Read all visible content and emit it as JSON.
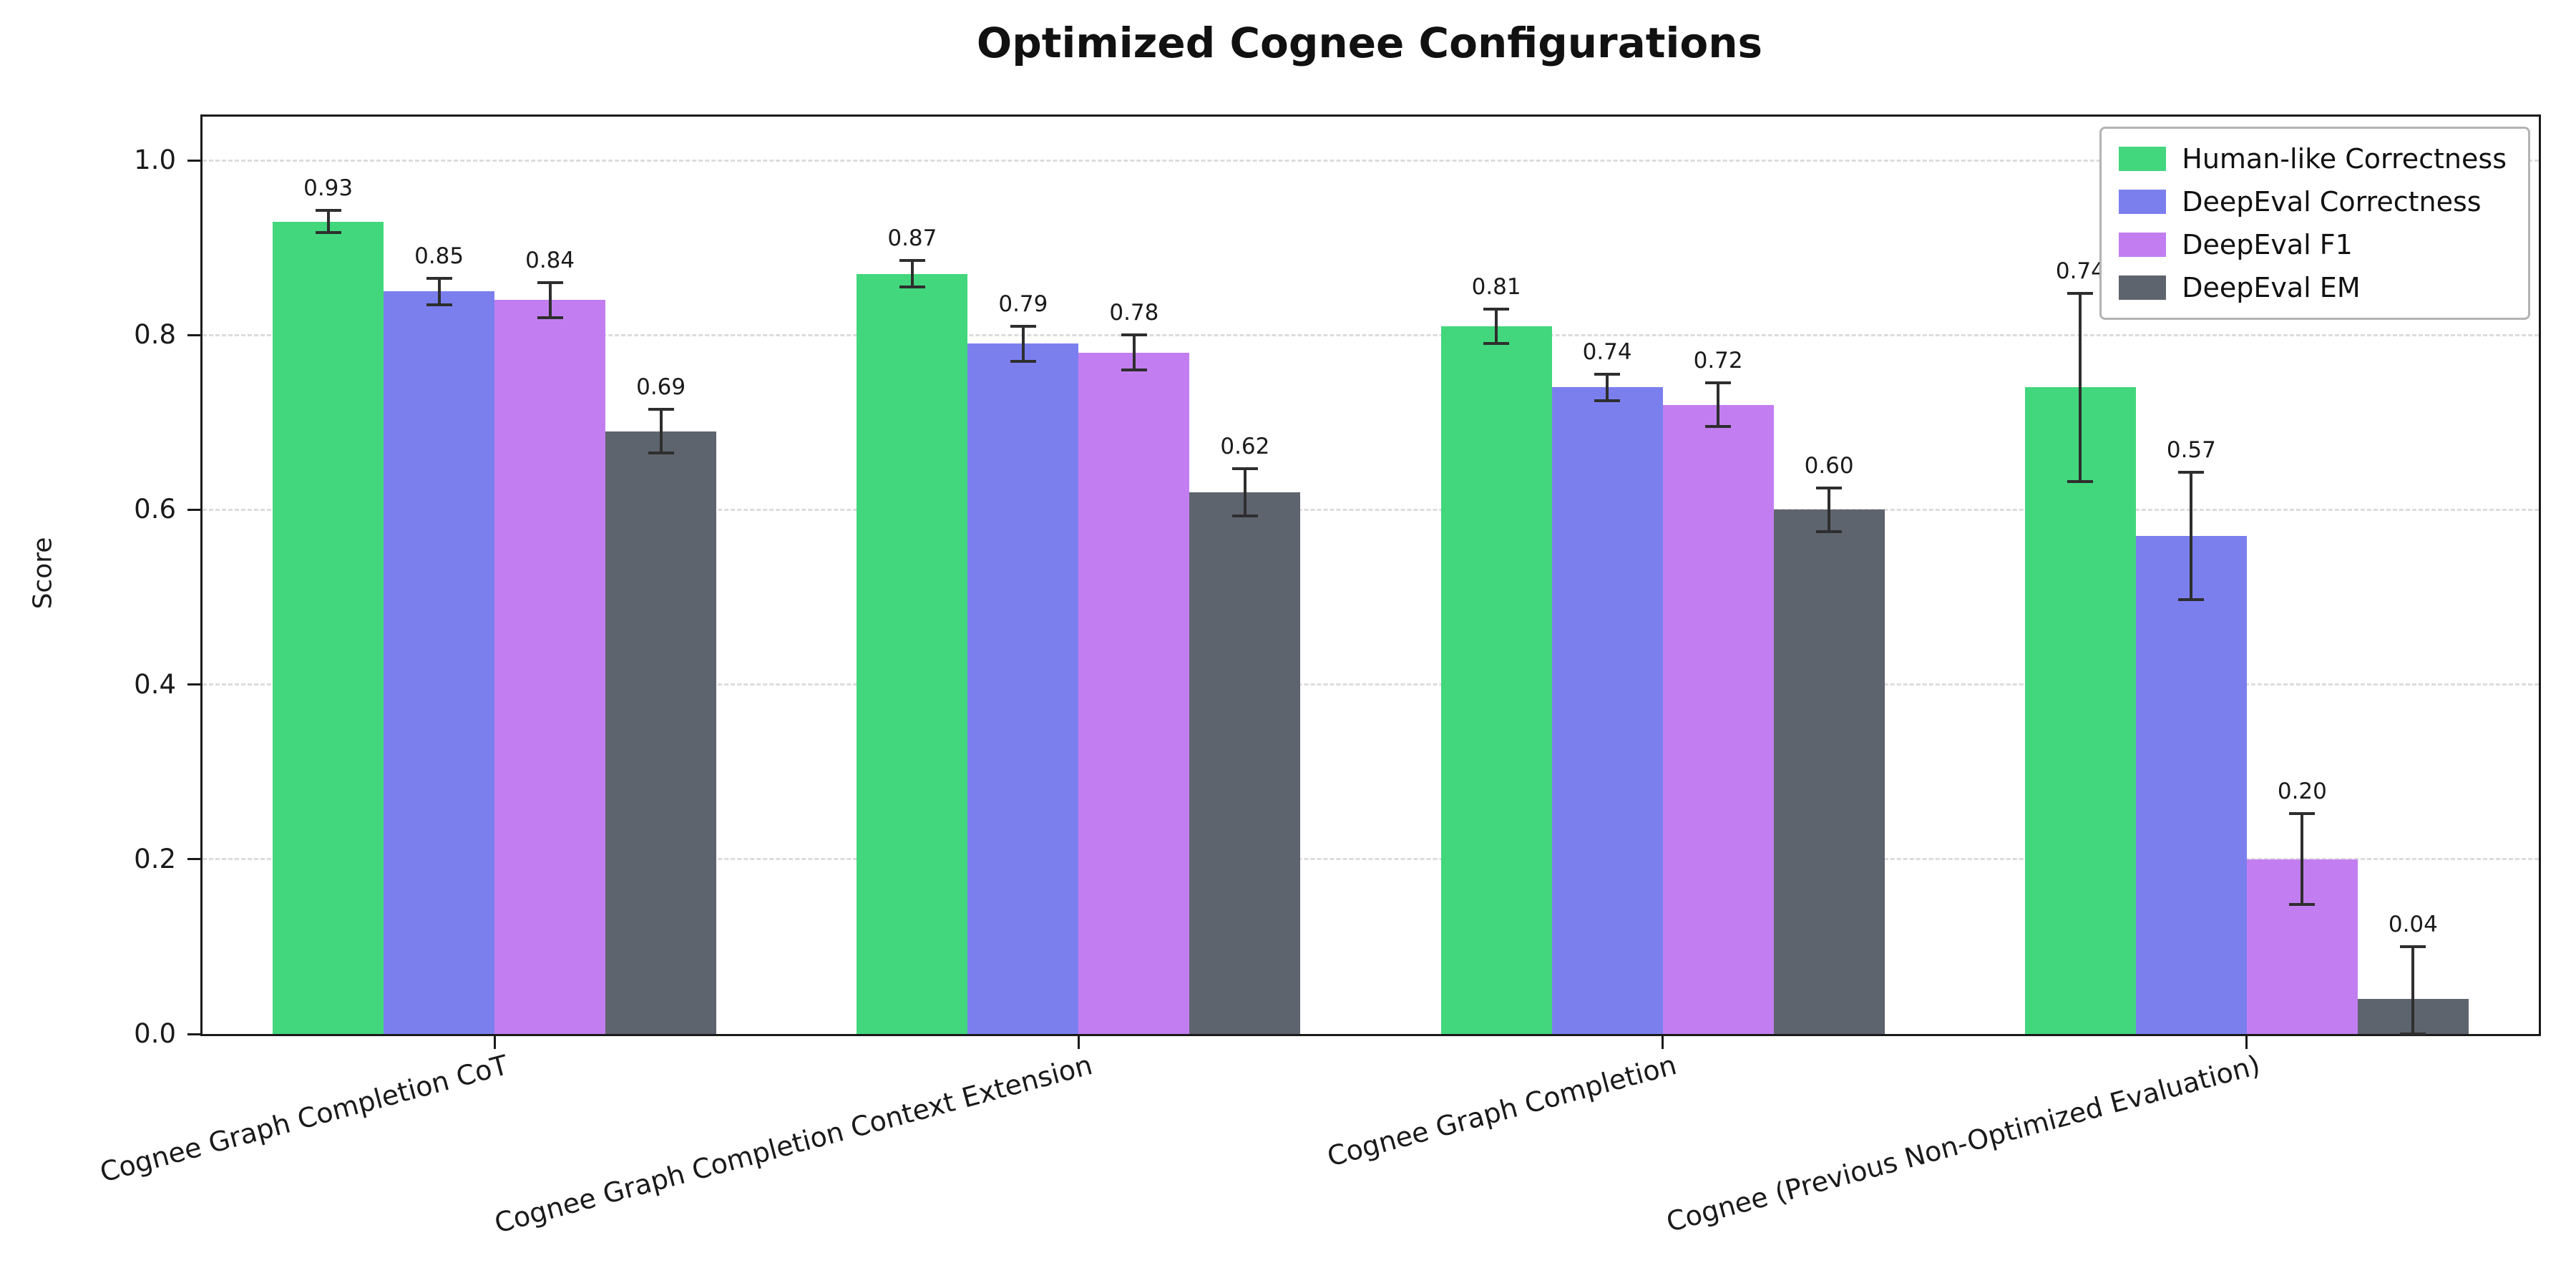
{
  "chart_data": {
    "type": "bar",
    "title": "Optimized Cognee Configurations",
    "xlabel": "",
    "ylabel": "Score",
    "ylim": [
      0,
      1.05
    ],
    "yticks": [
      0.0,
      0.2,
      0.4,
      0.6,
      0.8,
      1.0
    ],
    "grid": "horizontal-dashed",
    "legend_position": "top-right",
    "error_bars": true,
    "bar_value_labels": true,
    "categories": [
      "Cognee Graph Completion CoT",
      "Cognee Graph Completion Context Extension",
      "Cognee Graph Completion",
      "Cognee (Previous Non-Optimized Evaluation)"
    ],
    "series": [
      {
        "name": "Human-like Correctness",
        "color": "#42d77d",
        "values": [
          0.93,
          0.87,
          0.81,
          0.74
        ],
        "errors": [
          0.013,
          0.015,
          0.02,
          0.108
        ]
      },
      {
        "name": "DeepEval Correctness",
        "color": "#7b7fee",
        "values": [
          0.85,
          0.79,
          0.74,
          0.57
        ],
        "errors": [
          0.015,
          0.02,
          0.015,
          0.073
        ]
      },
      {
        "name": "DeepEval F1",
        "color": "#c27ef0",
        "values": [
          0.84,
          0.78,
          0.72,
          0.2
        ],
        "errors": [
          0.02,
          0.02,
          0.025,
          0.052
        ]
      },
      {
        "name": "DeepEval EM",
        "color": "#5e646e",
        "values": [
          0.69,
          0.62,
          0.6,
          0.04
        ],
        "errors": [
          0.025,
          0.027,
          0.025,
          0.06
        ]
      }
    ],
    "colors": {
      "grid": "#dcdcdc",
      "spine": "#1a1a1a",
      "error_bar": "#2e2e2e",
      "text": "#1a1a1a"
    }
  }
}
